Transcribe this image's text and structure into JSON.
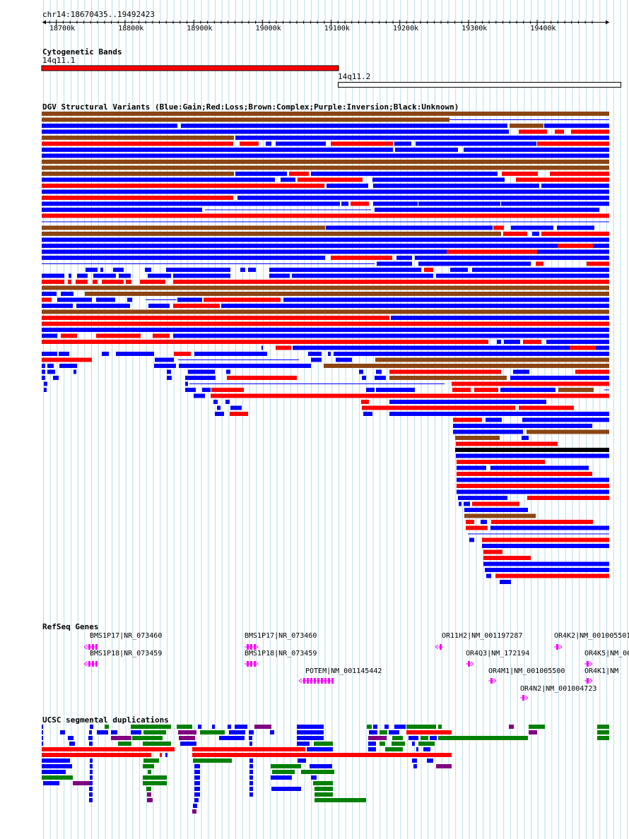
{
  "ruler": {
    "location": "chr14:18670435..19492423",
    "ticks": [
      "18700k",
      "18800k",
      "18900k",
      "19000k",
      "19100k",
      "19200k",
      "19300k",
      "19400k"
    ]
  },
  "cytoband": {
    "title": "Cytogenetic Bands",
    "bands": [
      {
        "name": "14q11.1",
        "color": "#ff0000"
      },
      {
        "name": "14q11.2",
        "color": "#ffffff"
      }
    ]
  },
  "dgv": {
    "title": "DGV Structural Variants (Blue:Gain;Red:Loss;Brown:Complex;Purple:Inversion;Black:Unknown)",
    "colors": {
      "gain": "#0000ff",
      "loss": "#ff0000",
      "complex": "#8b4513",
      "unknown": "#000000"
    }
  },
  "refseq": {
    "title": "RefSeq Genes",
    "color": "#ff00ff",
    "genes": [
      {
        "label": "BMS1P17|NR_073460",
        "strand": "-"
      },
      {
        "label": "BMS1P18|NR_073459",
        "strand": "-"
      },
      {
        "label": "BMS1P17|NR_073460",
        "strand": "+"
      },
      {
        "label": "BMS1P18|NR_073459",
        "strand": "+"
      },
      {
        "label": "POTEM|NM_001145442",
        "strand": "-"
      },
      {
        "label": "OR11H2|NM_001197287",
        "strand": "-"
      },
      {
        "label": "OR4Q3|NM_172194",
        "strand": "+"
      },
      {
        "label": "OR4M1|NM_001005500",
        "strand": "+"
      },
      {
        "label": "OR4N2|NM_001004723",
        "strand": "+"
      },
      {
        "label": "OR4K2|NM_001005501",
        "strand": "+"
      },
      {
        "label": "OR4K5|NM_00",
        "strand": "+"
      },
      {
        "label": "OR4K1|NM",
        "strand": "+"
      }
    ]
  },
  "segdup": {
    "title": "UCSC segmental duplications",
    "colors": {
      "blue": "#0000ff",
      "red": "#ff0000",
      "green": "#008000",
      "purple": "#800080"
    }
  }
}
